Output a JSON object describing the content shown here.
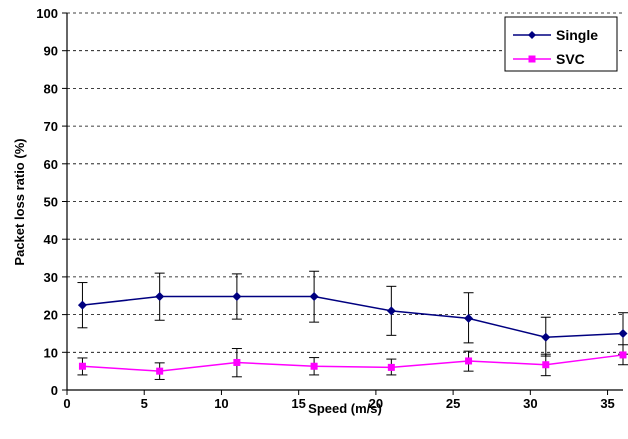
{
  "chart_data": {
    "type": "line",
    "title": "",
    "xlabel": "Speed (m/s)",
    "ylabel": "Packet loss ratio (%)",
    "xlim": [
      0,
      36
    ],
    "ylim": [
      0,
      100
    ],
    "x_ticks": [
      "0",
      "5",
      "10",
      "15",
      "20",
      "25",
      "30",
      "35"
    ],
    "y_ticks": [
      "0",
      "10",
      "20",
      "30",
      "40",
      "50",
      "60",
      "70",
      "80",
      "90",
      "100"
    ],
    "grid": "horizontal dashed",
    "legend_position": "top-right",
    "x": [
      1,
      6,
      11,
      16,
      21,
      26,
      31,
      36
    ],
    "series": [
      {
        "name": "Single",
        "color": "#000080",
        "marker": "diamond",
        "values": [
          22.5,
          24.8,
          24.8,
          24.8,
          21.0,
          19.0,
          14.0,
          15.0
        ],
        "err_low": [
          16.5,
          18.5,
          18.8,
          18.0,
          14.5,
          12.5,
          9.0,
          9.5
        ],
        "err_high": [
          28.5,
          31.0,
          30.8,
          31.5,
          27.5,
          25.8,
          19.3,
          20.5
        ]
      },
      {
        "name": "SVC",
        "color": "#ff00ff",
        "marker": "square",
        "values": [
          6.3,
          5.0,
          7.3,
          6.3,
          6.0,
          7.7,
          6.7,
          9.3
        ],
        "err_low": [
          4.0,
          2.8,
          3.5,
          4.0,
          4.0,
          5.0,
          3.8,
          6.7
        ],
        "err_high": [
          8.5,
          7.2,
          11.0,
          8.6,
          8.2,
          10.3,
          9.5,
          12.0
        ]
      }
    ]
  }
}
